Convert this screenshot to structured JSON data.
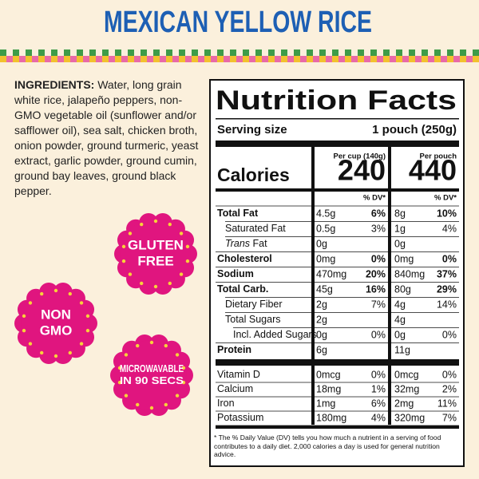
{
  "title": "MEXICAN YELLOW RICE",
  "ingredients": {
    "label": "INGREDIENTS:",
    "text": "Water, long grain white rice, jalapeño peppers, non-GMO vegetable oil (sunflower and/or safflower oil), sea salt, chicken broth, onion powder, ground turmeric, yeast extract, garlic powder, ground cumin, ground bay leaves, ground black pepper."
  },
  "badges": [
    {
      "lines": [
        "GLUTEN",
        "FREE"
      ]
    },
    {
      "lines": [
        "NON",
        "GMO"
      ]
    },
    {
      "lines": [
        "MICROWAVABLE",
        "IN 90 SECS"
      ]
    }
  ],
  "nutrition": {
    "title": "Nutrition Facts",
    "serving_label": "Serving size",
    "serving_value": "1 pouch (250g)",
    "columns": [
      "Per cup (140g)",
      "Per pouch"
    ],
    "calories_label": "Calories",
    "calories": [
      240,
      440
    ],
    "dv_header": "% DV*",
    "rows": [
      {
        "prefix": "",
        "label": "Total Fat",
        "amounts": [
          "4.5g",
          "8g"
        ],
        "dv": [
          "6%",
          "10%"
        ]
      },
      {
        "prefix": "",
        "label": "Saturated Fat",
        "amounts": [
          "0.5g",
          "1g"
        ],
        "dv": [
          "3%",
          "4%"
        ]
      },
      {
        "prefix": "Trans",
        "label": "Fat",
        "amounts": [
          "0g",
          "0g"
        ],
        "dv": []
      },
      {
        "prefix": "",
        "label": "Cholesterol",
        "amounts": [
          "0mg",
          "0mg"
        ],
        "dv": [
          "0%",
          "0%"
        ]
      },
      {
        "prefix": "",
        "label": "Sodium",
        "amounts": [
          "470mg",
          "840mg"
        ],
        "dv": [
          "20%",
          "37%"
        ]
      },
      {
        "prefix": "",
        "label": "Total Carb.",
        "amounts": [
          "45g",
          "80g"
        ],
        "dv": [
          "16%",
          "29%"
        ]
      },
      {
        "prefix": "",
        "label": "Dietary Fiber",
        "amounts": [
          "2g",
          "4g"
        ],
        "dv": [
          "7%",
          "14%"
        ]
      },
      {
        "prefix": "",
        "label": "Total Sugars",
        "amounts": [
          "2g",
          "4g"
        ],
        "dv": []
      },
      {
        "prefix": "",
        "label": "Incl. Added Sugars",
        "amounts": [
          "0g",
          "0g"
        ],
        "dv": [
          "0%",
          "0%"
        ]
      },
      {
        "prefix": "",
        "label": "Protein",
        "amounts": [
          "6g",
          "11g"
        ],
        "dv": []
      }
    ],
    "vitamins": [
      {
        "label": "Vitamin D",
        "amounts": [
          "0mcg",
          "0mcg"
        ],
        "dv": [
          "0%",
          "0%"
        ]
      },
      {
        "label": "Calcium",
        "amounts": [
          "18mg",
          "32mg"
        ],
        "dv": [
          "1%",
          "2%"
        ]
      },
      {
        "label": "Iron",
        "amounts": [
          "1mg",
          "2mg"
        ],
        "dv": [
          "6%",
          "11%"
        ]
      },
      {
        "label": "Potassium",
        "amounts": [
          "180mg",
          "320mg"
        ],
        "dv": [
          "4%",
          "7%"
        ]
      }
    ],
    "footnote": "* The % Daily Value (DV) tells you how much a nutrient in a serving of food contributes to a daily diet. 2,000 calories a day is used for general nutrition advice."
  }
}
